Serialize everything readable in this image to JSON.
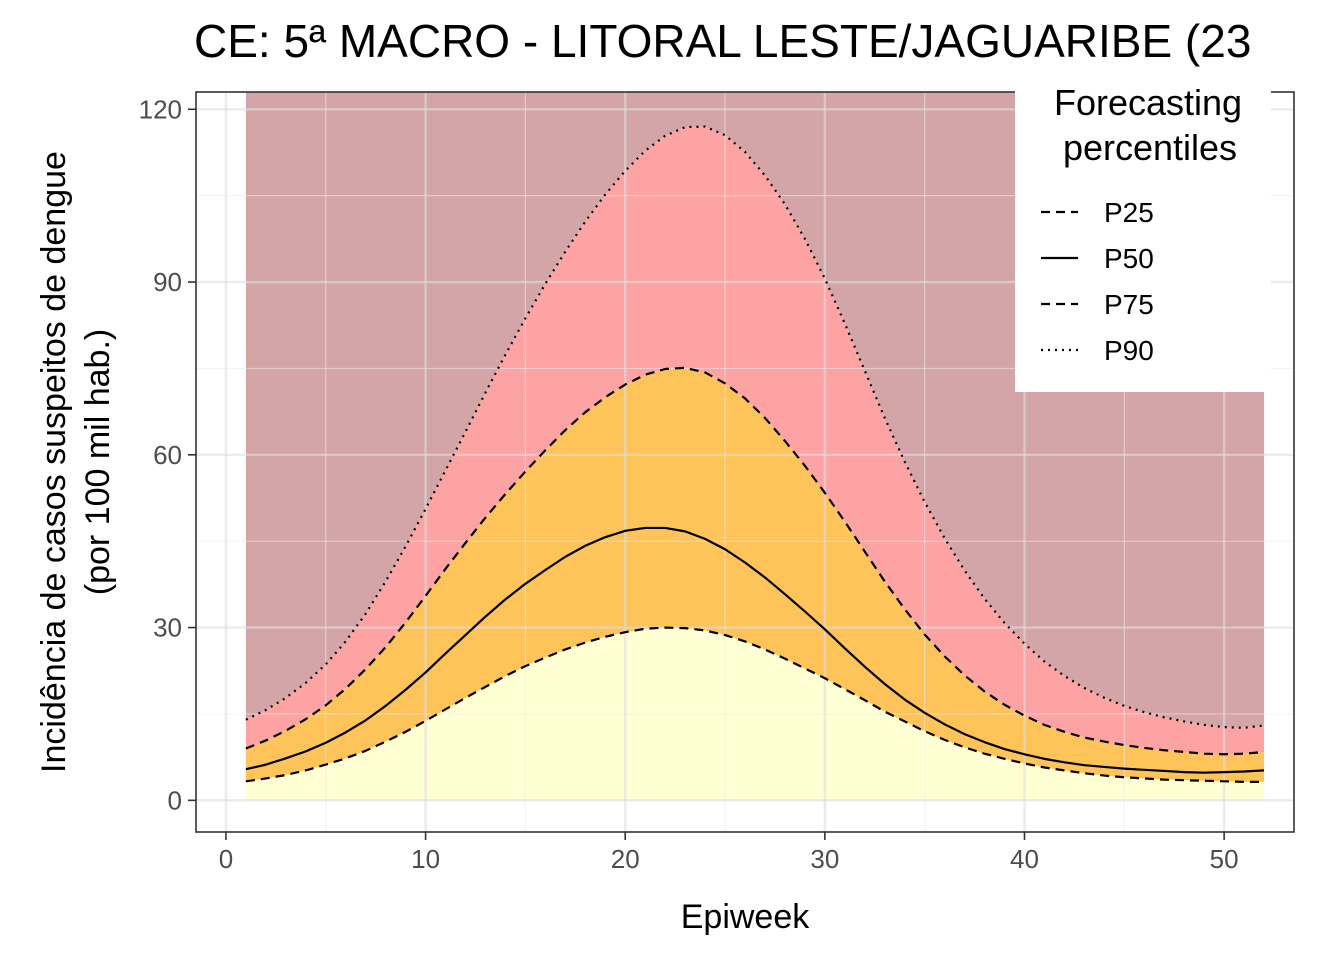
{
  "chart_data": {
    "type": "area",
    "title": "CE: 5ª MACRO - LITORAL LESTE/JAGUARIBE (23",
    "xlabel": "Epiweek",
    "ylabel_line1": "Incidência de casos suspeitos de dengue",
    "ylabel_line2": "(por 100 mil hab.)",
    "xlim": [
      -1.5,
      53.5
    ],
    "ylim": [
      -5.5,
      123
    ],
    "x_ticks": [
      0,
      10,
      20,
      30,
      40,
      50
    ],
    "y_ticks": [
      0,
      30,
      60,
      90,
      120
    ],
    "grid": true,
    "band_colors": {
      "below_p25": "#FFFFD4",
      "p25_p75": "#FEC359",
      "p75_p90": "#FEA3A4",
      "above_p90": "#D4A5A6"
    },
    "band_top": 123,
    "legend": {
      "title_line1": "Forecasting",
      "title_line2": "percentiles",
      "placement": "top-right",
      "entries": [
        {
          "label": "P25",
          "dash": "dashed"
        },
        {
          "label": "P50",
          "dash": "solid"
        },
        {
          "label": "P75",
          "dash": "dashed"
        },
        {
          "label": "P90",
          "dash": "dotted"
        }
      ]
    },
    "x": [
      1,
      2,
      3,
      4,
      5,
      6,
      7,
      8,
      9,
      10,
      11,
      12,
      13,
      14,
      15,
      16,
      17,
      18,
      19,
      20,
      21,
      22,
      23,
      24,
      25,
      26,
      27,
      28,
      29,
      30,
      31,
      32,
      33,
      34,
      35,
      36,
      37,
      38,
      39,
      40,
      41,
      42,
      43,
      44,
      45,
      46,
      47,
      48,
      49,
      50,
      51,
      52
    ],
    "series": [
      {
        "name": "P25",
        "values": [
          3.3,
          3.8,
          4.4,
          5.2,
          6.2,
          7.3,
          8.6,
          10.2,
          11.9,
          13.8,
          15.8,
          17.8,
          19.7,
          21.6,
          23.3,
          24.8,
          26.2,
          27.4,
          28.4,
          29.2,
          29.8,
          30.0,
          29.9,
          29.5,
          28.7,
          27.6,
          26.2,
          24.6,
          22.9,
          21.2,
          19.3,
          17.4,
          15.4,
          13.7,
          12.0,
          10.5,
          9.2,
          8.1,
          7.2,
          6.4,
          5.7,
          5.2,
          4.7,
          4.3,
          4.0,
          3.8,
          3.6,
          3.5,
          3.4,
          3.3,
          3.2,
          3.2
        ]
      },
      {
        "name": "P50",
        "values": [
          5.4,
          6.2,
          7.3,
          8.5,
          10.0,
          11.8,
          13.9,
          16.4,
          19.2,
          22.2,
          25.5,
          28.7,
          31.9,
          34.9,
          37.6,
          40.0,
          42.3,
          44.2,
          45.7,
          46.8,
          47.3,
          47.3,
          46.7,
          45.4,
          43.6,
          41.3,
          38.7,
          35.8,
          32.8,
          29.7,
          26.4,
          23.2,
          20.2,
          17.5,
          15.2,
          13.2,
          11.5,
          10.1,
          8.9,
          8.0,
          7.2,
          6.6,
          6.1,
          5.8,
          5.5,
          5.3,
          5.1,
          4.9,
          4.8,
          4.9,
          5.0,
          5.2
        ]
      },
      {
        "name": "P75",
        "values": [
          9.0,
          10.4,
          12.1,
          14.1,
          16.5,
          19.4,
          22.8,
          26.6,
          30.9,
          35.5,
          40.2,
          44.7,
          49.1,
          53.2,
          57.1,
          60.8,
          64.3,
          67.4,
          70.0,
          72.2,
          73.9,
          74.9,
          75.1,
          74.3,
          72.4,
          69.8,
          66.4,
          62.4,
          58.1,
          53.4,
          48.4,
          43.2,
          38.0,
          33.2,
          28.8,
          25.0,
          21.7,
          18.9,
          16.6,
          14.7,
          13.1,
          11.9,
          10.9,
          10.2,
          9.6,
          9.1,
          8.7,
          8.4,
          8.1,
          8.0,
          8.1,
          8.4
        ]
      },
      {
        "name": "P90",
        "values": [
          14.0,
          15.7,
          17.8,
          20.4,
          23.6,
          27.6,
          32.4,
          38.0,
          44.1,
          50.6,
          57.3,
          64.0,
          70.8,
          77.4,
          83.7,
          89.7,
          95.3,
          100.5,
          105.2,
          109.3,
          112.8,
          115.4,
          116.9,
          117.0,
          115.5,
          112.6,
          108.5,
          103.5,
          97.5,
          90.6,
          82.8,
          74.6,
          66.4,
          58.8,
          51.8,
          45.5,
          39.9,
          35.0,
          30.8,
          27.2,
          24.1,
          21.6,
          19.5,
          17.8,
          16.4,
          15.3,
          14.4,
          13.7,
          13.1,
          12.7,
          12.6,
          13.0
        ]
      }
    ]
  }
}
